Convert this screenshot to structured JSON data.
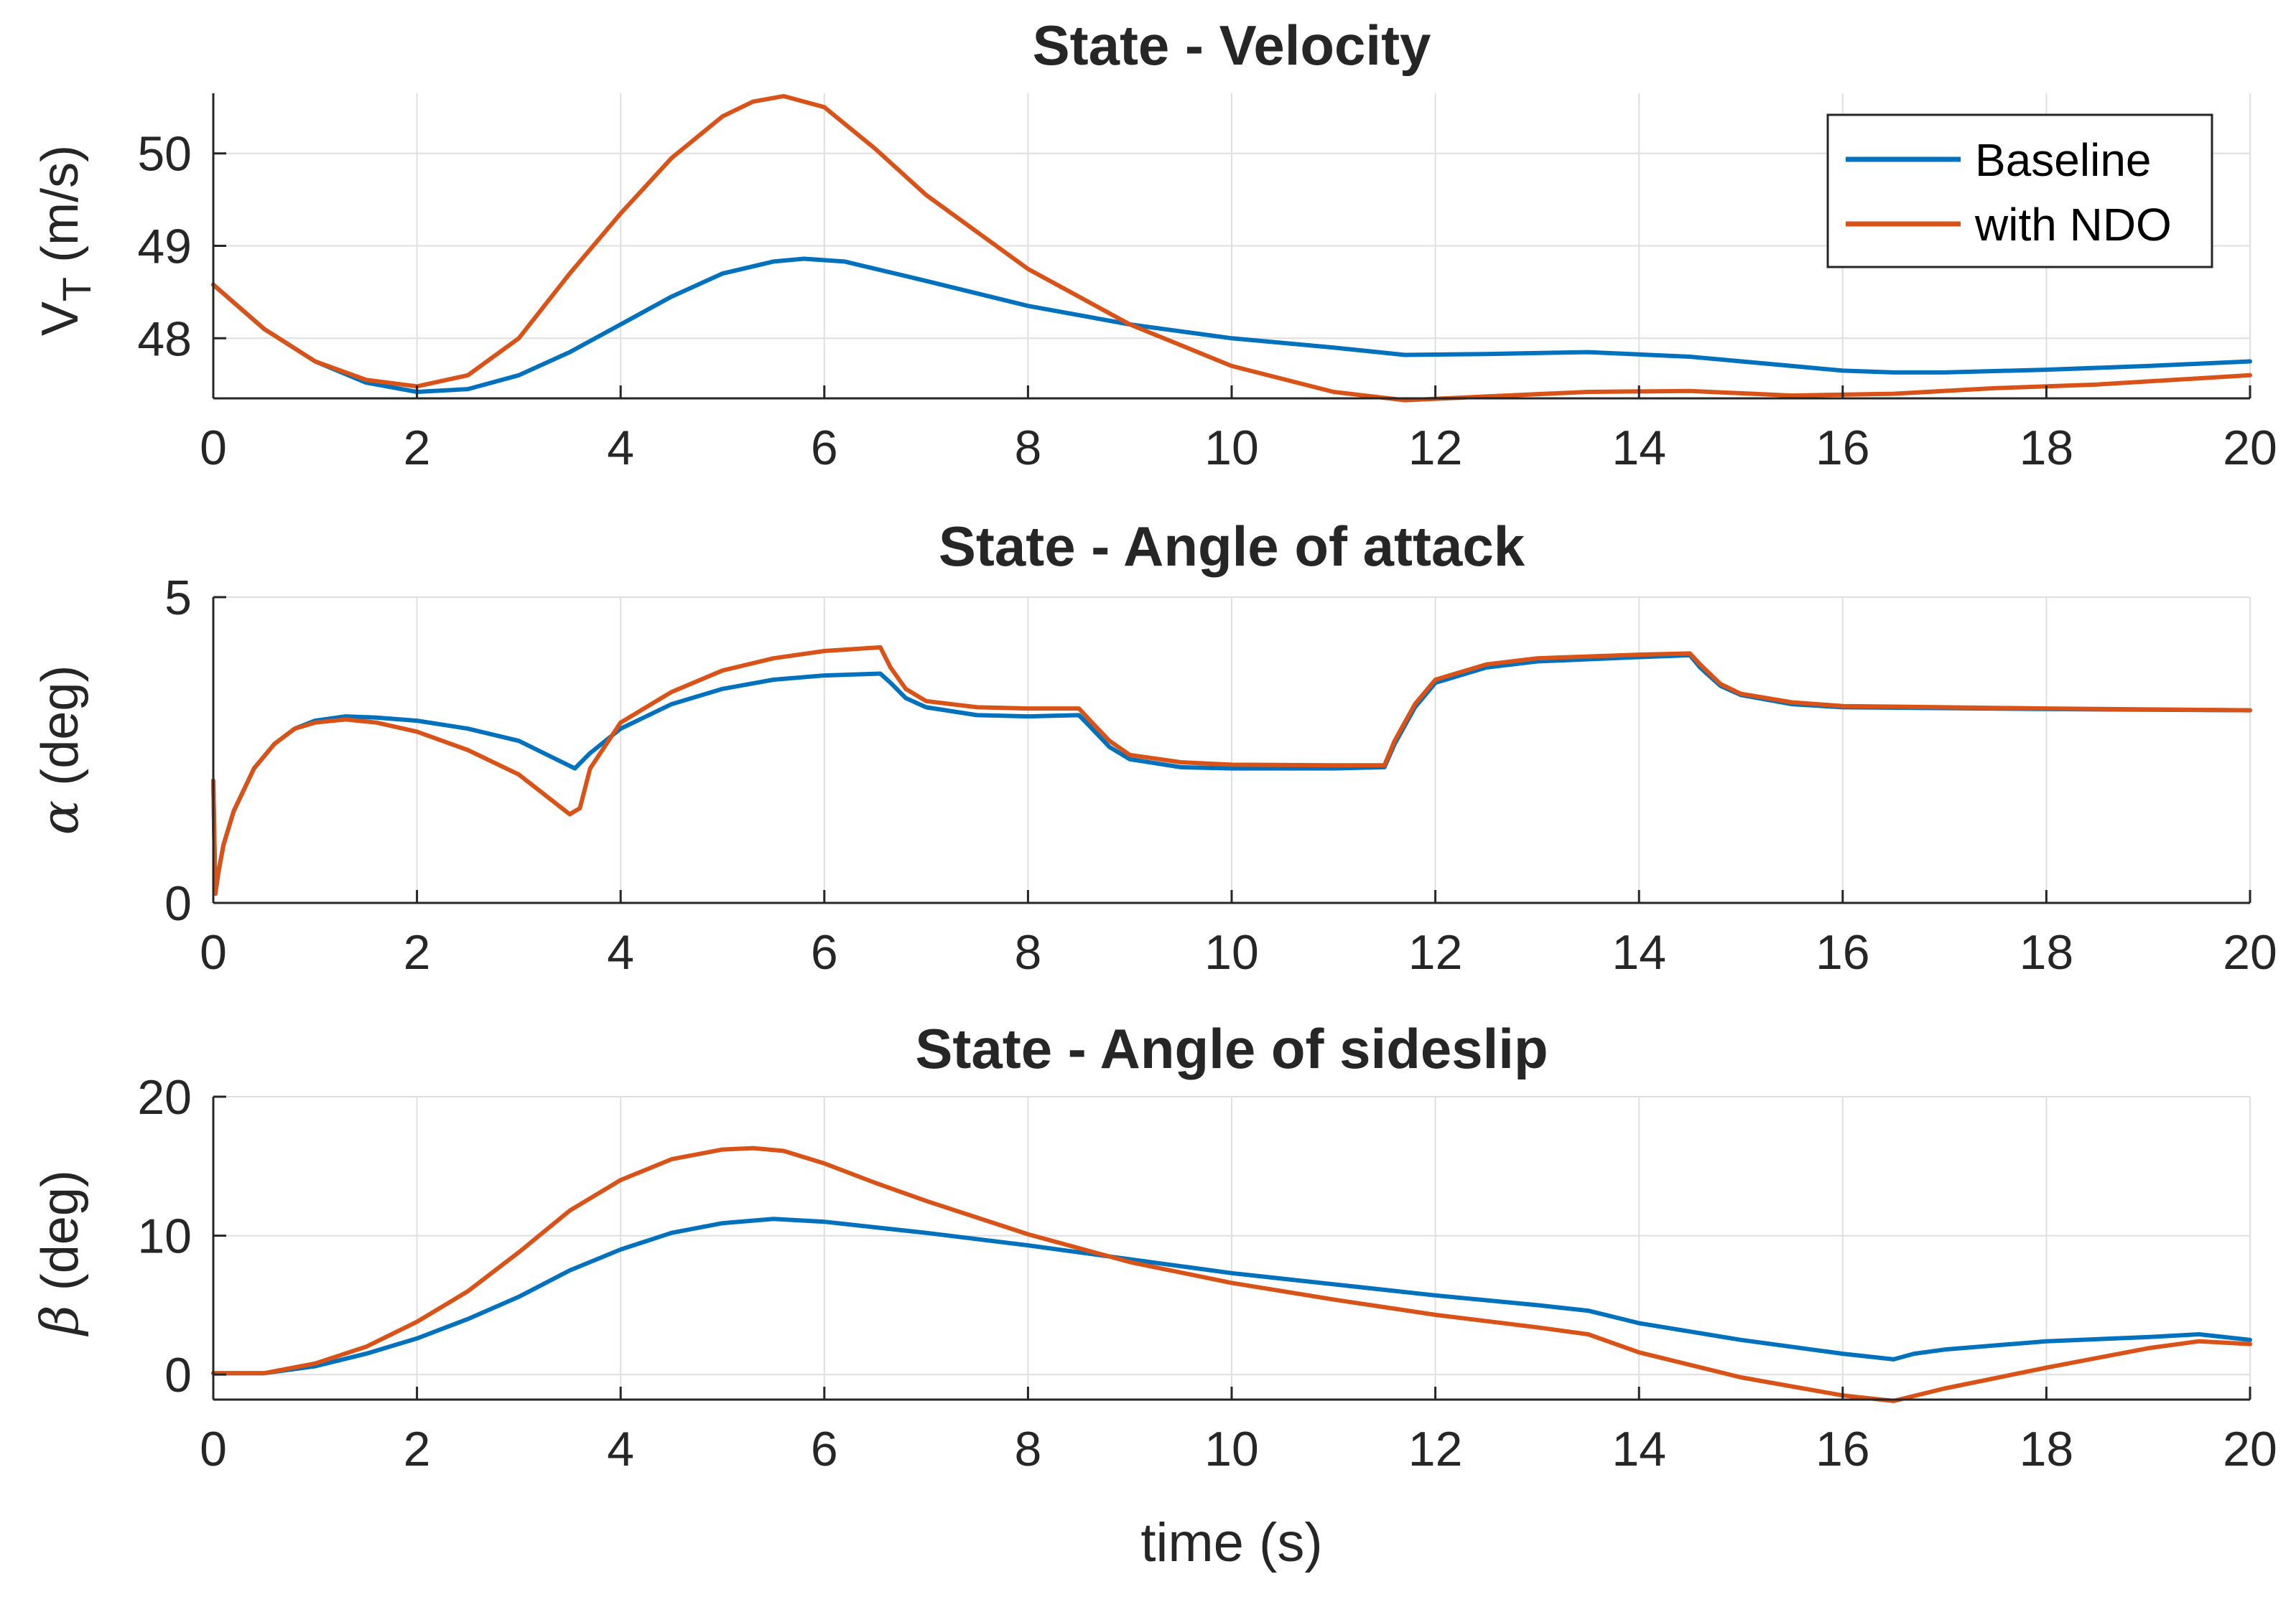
{
  "chart_data": [
    {
      "type": "line",
      "title": "State - Velocity",
      "xlabel": "",
      "ylabel": "V_T (m/s)",
      "ylabel_main": "V",
      "ylabel_sub": "T",
      "ylabel_unit": " (m/s)",
      "xlim": [
        0,
        20
      ],
      "ylim": [
        47.35,
        50.65
      ],
      "xticks": [
        0,
        2,
        4,
        6,
        8,
        10,
        12,
        14,
        16,
        18,
        20
      ],
      "xtick_labels": [
        "0",
        "2",
        "4",
        "6",
        "8",
        "10",
        "12",
        "14",
        "16",
        "18",
        "20"
      ],
      "yticks": [
        48,
        49,
        50
      ],
      "ytick_labels": [
        "48",
        "49",
        "50"
      ],
      "grid": true,
      "legend": {
        "location": "top-right",
        "entries": [
          "Baseline",
          "with NDO"
        ]
      },
      "series": [
        {
          "name": "Baseline",
          "color": "#0072BD",
          "x": [
            0,
            0.5,
            1,
            1.5,
            2,
            2.5,
            3,
            3.5,
            4,
            4.5,
            5,
            5.5,
            5.8,
            6.2,
            7,
            8,
            9,
            10,
            11,
            11.7,
            12.5,
            13.5,
            14.5,
            15.5,
            16,
            16.5,
            17,
            18,
            19,
            20
          ],
          "y": [
            48.58,
            48.1,
            47.75,
            47.52,
            47.42,
            47.45,
            47.6,
            47.85,
            48.15,
            48.45,
            48.7,
            48.83,
            48.86,
            48.83,
            48.62,
            48.35,
            48.15,
            48.0,
            47.9,
            47.82,
            47.83,
            47.85,
            47.8,
            47.7,
            47.65,
            47.63,
            47.63,
            47.66,
            47.7,
            47.75
          ]
        },
        {
          "name": "with NDO",
          "color": "#D95319",
          "x": [
            0,
            0.5,
            1,
            1.5,
            2,
            2.5,
            3,
            3.5,
            4,
            4.5,
            5,
            5.3,
            5.6,
            6,
            6.5,
            7,
            7.5,
            8,
            9,
            10,
            11,
            11.7,
            12.5,
            13.5,
            14.5,
            15.5,
            16.5,
            17.5,
            18.5,
            20
          ],
          "y": [
            48.58,
            48.1,
            47.75,
            47.55,
            47.48,
            47.6,
            48.0,
            48.7,
            49.35,
            49.95,
            50.4,
            50.56,
            50.62,
            50.5,
            50.05,
            49.55,
            49.15,
            48.75,
            48.15,
            47.7,
            47.42,
            47.33,
            47.37,
            47.42,
            47.43,
            47.38,
            47.4,
            47.46,
            47.5,
            47.6
          ]
        }
      ]
    },
    {
      "type": "line",
      "title": "State - Angle of attack",
      "xlabel": "",
      "ylabel": "α (deg)",
      "ylabel_main": "α",
      "ylabel_unit": " (deg)",
      "xlim": [
        0,
        20
      ],
      "ylim": [
        0,
        5
      ],
      "xticks": [
        0,
        2,
        4,
        6,
        8,
        10,
        12,
        14,
        16,
        18,
        20
      ],
      "xtick_labels": [
        "0",
        "2",
        "4",
        "6",
        "8",
        "10",
        "12",
        "14",
        "16",
        "18",
        "20"
      ],
      "yticks": [
        0,
        5
      ],
      "ytick_labels": [
        "0",
        "5"
      ],
      "grid": true,
      "series": [
        {
          "name": "Baseline",
          "color": "#0072BD",
          "x": [
            0,
            0.02,
            0.05,
            0.1,
            0.2,
            0.4,
            0.6,
            0.8,
            1.0,
            1.3,
            1.6,
            2,
            2.5,
            3,
            3.55,
            3.7,
            4,
            4.5,
            5,
            5.5,
            6,
            6.55,
            6.65,
            6.8,
            7,
            7.5,
            8,
            8.5,
            8.6,
            8.8,
            9,
            9.5,
            10,
            11,
            11.5,
            11.6,
            11.8,
            12,
            12.5,
            13,
            14,
            14.5,
            14.6,
            14.8,
            15,
            15.5,
            16,
            18,
            20
          ],
          "y": [
            2.0,
            0.15,
            0.5,
            0.95,
            1.5,
            2.2,
            2.6,
            2.85,
            2.98,
            3.05,
            3.03,
            2.98,
            2.85,
            2.65,
            2.2,
            2.45,
            2.85,
            3.25,
            3.5,
            3.65,
            3.72,
            3.75,
            3.6,
            3.35,
            3.2,
            3.07,
            3.05,
            3.07,
            2.9,
            2.55,
            2.35,
            2.22,
            2.2,
            2.2,
            2.22,
            2.6,
            3.2,
            3.6,
            3.85,
            3.95,
            4.02,
            4.05,
            3.85,
            3.55,
            3.4,
            3.25,
            3.2,
            3.17,
            3.15
          ]
        },
        {
          "name": "with NDO",
          "color": "#D95319",
          "x": [
            0,
            0.02,
            0.05,
            0.1,
            0.2,
            0.4,
            0.6,
            0.8,
            1.0,
            1.3,
            1.6,
            2,
            2.5,
            3,
            3.5,
            3.6,
            3.7,
            4,
            4.5,
            5,
            5.5,
            6,
            6.55,
            6.65,
            6.8,
            7,
            7.5,
            8,
            8.5,
            8.6,
            8.8,
            9,
            9.5,
            10,
            11,
            11.5,
            11.6,
            11.8,
            12,
            12.5,
            13,
            14,
            14.5,
            14.6,
            14.8,
            15,
            15.5,
            16,
            18,
            20
          ],
          "y": [
            2.0,
            0.15,
            0.5,
            0.95,
            1.5,
            2.2,
            2.6,
            2.85,
            2.95,
            3.0,
            2.95,
            2.8,
            2.5,
            2.1,
            1.45,
            1.55,
            2.2,
            2.95,
            3.45,
            3.8,
            4.0,
            4.12,
            4.18,
            3.85,
            3.5,
            3.3,
            3.2,
            3.18,
            3.18,
            3.0,
            2.65,
            2.42,
            2.3,
            2.26,
            2.25,
            2.25,
            2.65,
            3.25,
            3.65,
            3.9,
            4.0,
            4.06,
            4.08,
            3.9,
            3.58,
            3.42,
            3.28,
            3.22,
            3.18,
            3.15
          ]
        }
      ]
    },
    {
      "type": "line",
      "title": "State - Angle of sideslip",
      "xlabel": "time (s)",
      "ylabel": "β (deg)",
      "ylabel_main": "β",
      "ylabel_unit": " (deg)",
      "xlim": [
        0,
        20
      ],
      "ylim": [
        -1.8,
        20
      ],
      "xticks": [
        0,
        2,
        4,
        6,
        8,
        10,
        12,
        14,
        16,
        18,
        20
      ],
      "xtick_labels": [
        "0",
        "2",
        "4",
        "6",
        "8",
        "10",
        "12",
        "14",
        "16",
        "18",
        "20"
      ],
      "yticks": [
        0,
        10,
        20
      ],
      "ytick_labels": [
        "0",
        "10",
        "20"
      ],
      "grid": true,
      "series": [
        {
          "name": "Baseline",
          "color": "#0072BD",
          "x": [
            0,
            0.5,
            1,
            1.5,
            2,
            2.5,
            3,
            3.5,
            4,
            4.5,
            5,
            5.5,
            6,
            6.5,
            7,
            8,
            9,
            10,
            11,
            12,
            13,
            13.5,
            14,
            15,
            16,
            16.5,
            16.7,
            17,
            18,
            19,
            19.5,
            20
          ],
          "y": [
            0.1,
            0.1,
            0.6,
            1.5,
            2.6,
            4.0,
            5.6,
            7.5,
            9.0,
            10.2,
            10.9,
            11.2,
            11.0,
            10.6,
            10.2,
            9.3,
            8.3,
            7.3,
            6.5,
            5.7,
            5.0,
            4.6,
            3.7,
            2.5,
            1.5,
            1.1,
            1.5,
            1.8,
            2.4,
            2.7,
            2.9,
            2.5
          ]
        },
        {
          "name": "with NDO",
          "color": "#D95319",
          "x": [
            0,
            0.5,
            1,
            1.5,
            2,
            2.5,
            3,
            3.5,
            4,
            4.5,
            5,
            5.3,
            5.6,
            6,
            6.5,
            7,
            8,
            9,
            10,
            11,
            12,
            13,
            13.5,
            14,
            15,
            16,
            16.5,
            17,
            18,
            19,
            19.5,
            20
          ],
          "y": [
            0.1,
            0.1,
            0.8,
            2.0,
            3.8,
            6.0,
            8.8,
            11.8,
            14.0,
            15.5,
            16.2,
            16.3,
            16.1,
            15.2,
            13.8,
            12.5,
            10.1,
            8.1,
            6.6,
            5.4,
            4.3,
            3.4,
            2.9,
            1.6,
            -0.2,
            -1.5,
            -1.9,
            -1.0,
            0.5,
            1.9,
            2.4,
            2.2
          ]
        }
      ]
    }
  ]
}
